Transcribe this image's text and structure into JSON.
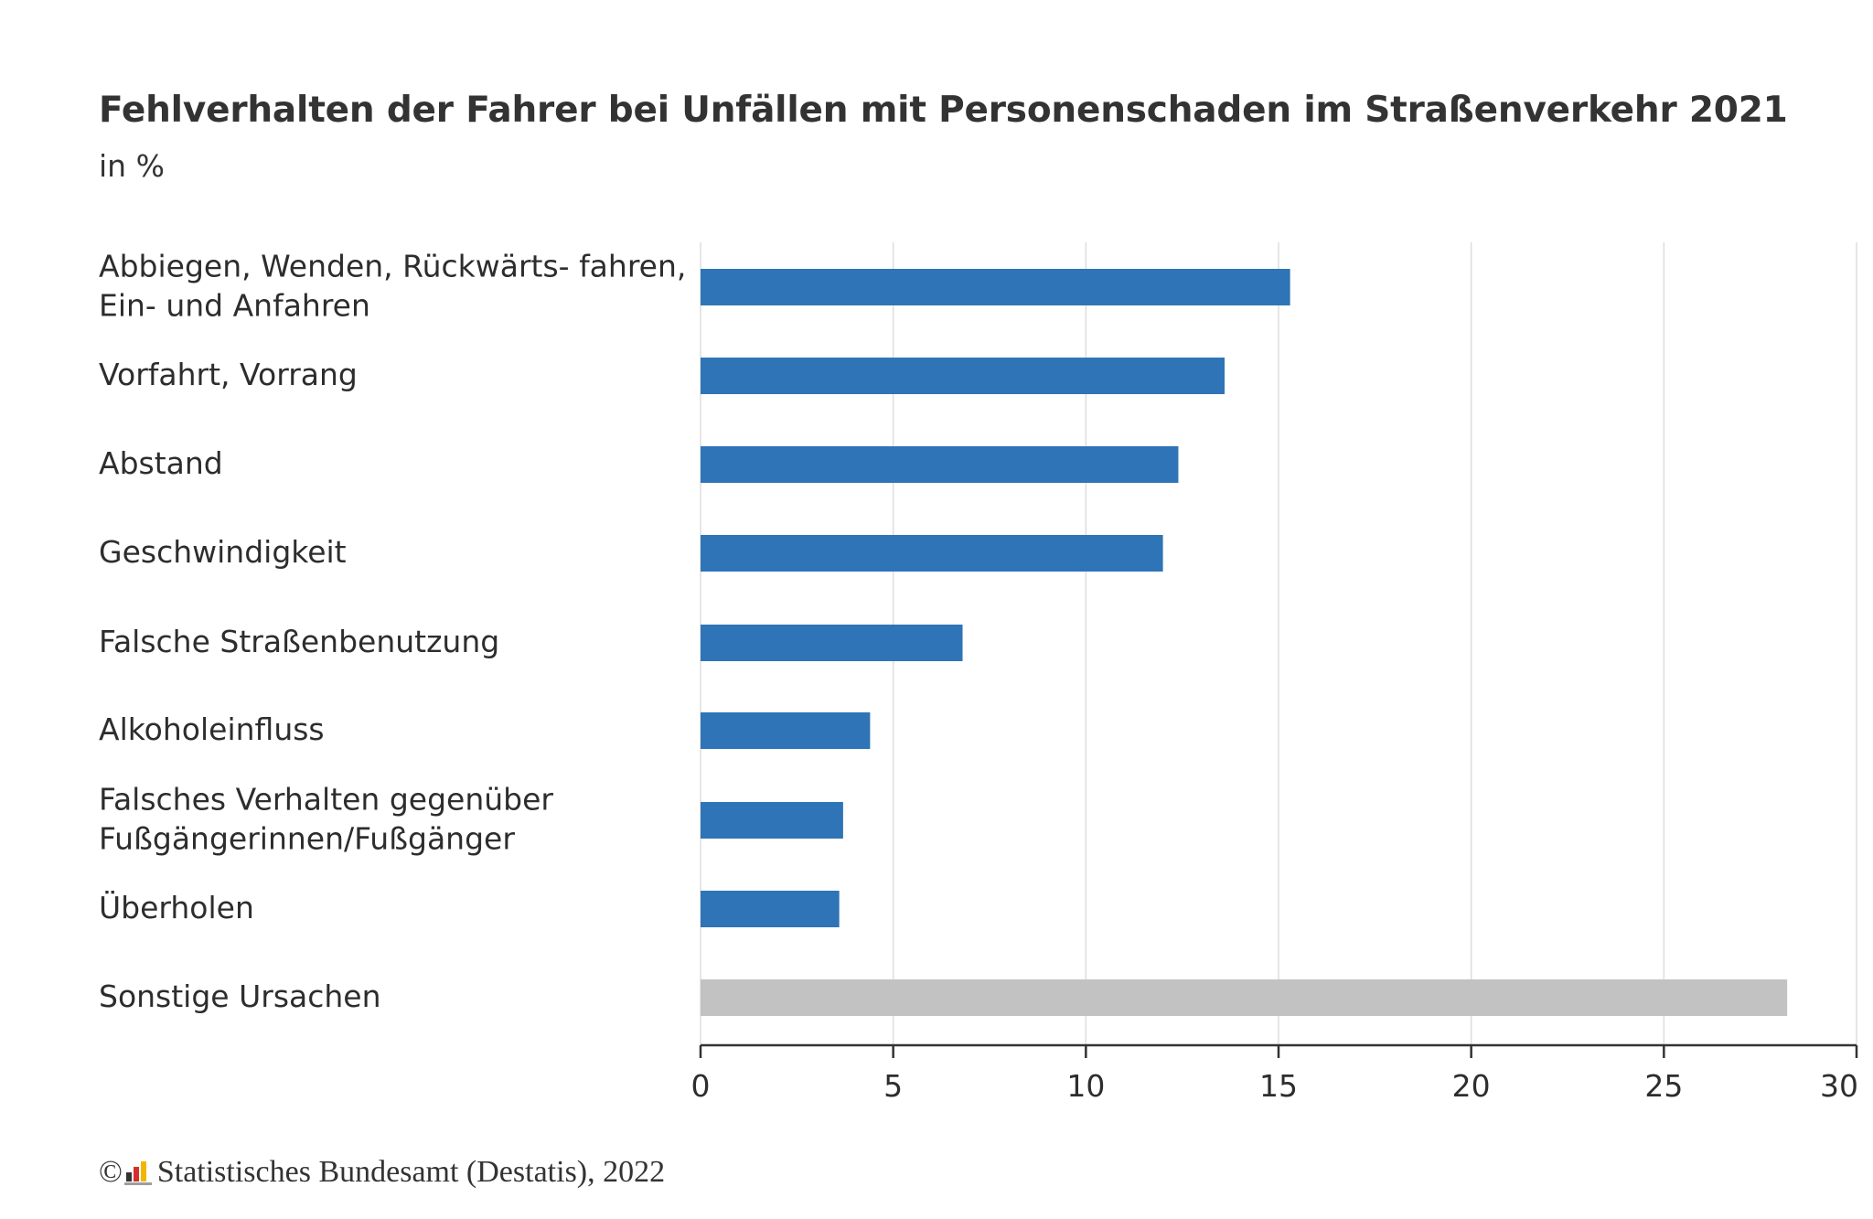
{
  "chart_data": {
    "type": "bar",
    "orientation": "horizontal",
    "title": "Fehlverhalten der Fahrer bei Unfällen mit Personenschaden im Straßenverkehr 2021",
    "subtitle": "in %",
    "categories": [
      [
        "Abbiegen, Wenden, Rückwärts- fahren,",
        "Ein- und Anfahren"
      ],
      [
        "Vorfahrt, Vorrang"
      ],
      [
        "Abstand"
      ],
      [
        "Geschwindigkeit"
      ],
      [
        "Falsche Straßenbenutzung"
      ],
      [
        "Alkoholeinfluss"
      ],
      [
        "Falsches Verhalten gegenüber",
        "Fußgängerinnen/Fußgänger"
      ],
      [
        "Überholen"
      ],
      [
        "Sonstige Ursachen"
      ]
    ],
    "values": [
      15.3,
      13.6,
      12.4,
      12.0,
      6.8,
      4.4,
      3.7,
      3.6,
      28.2
    ],
    "colors": [
      "#2e74b6",
      "#2e74b6",
      "#2e74b6",
      "#2e74b6",
      "#2e74b6",
      "#2e74b6",
      "#2e74b6",
      "#2e74b6",
      "#c2c2c2"
    ],
    "xlim": [
      0,
      30
    ],
    "xticks": [
      0,
      5,
      10,
      15,
      20,
      25,
      30
    ],
    "grid": "vertical",
    "xlabel": "",
    "ylabel": ""
  },
  "footer": {
    "copyright_symbol": "©",
    "source_text": "Statistisches Bundesamt (Destatis), 2022"
  },
  "colors": {
    "bar": "#2e74b6",
    "other_bar": "#c2c2c2",
    "grid": "#dedede",
    "axis": "#333333"
  }
}
